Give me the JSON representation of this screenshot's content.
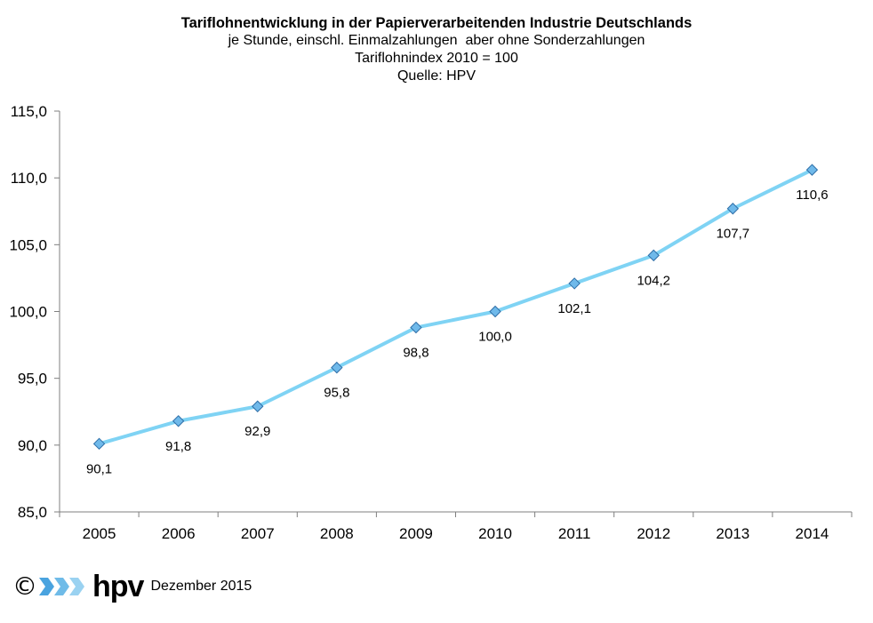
{
  "header": {
    "title": "Tariflohnentwicklung in der Papierverarbeitenden Industrie Deutschlands",
    "subtitle1": "je Stunde, einschl. Einmalzahlungen  aber ohne Sonderzahlungen",
    "subtitle2": "Tariflohnindex 2010 = 100",
    "subtitle3": "Quelle: HPV"
  },
  "chart_data": {
    "type": "line",
    "title": "Tariflohnentwicklung in der Papierverarbeitenden Industrie Deutschlands",
    "categories": [
      "2005",
      "2006",
      "2007",
      "2008",
      "2009",
      "2010",
      "2011",
      "2012",
      "2013",
      "2014"
    ],
    "series": [
      {
        "values": [
          90.1,
          91.8,
          92.9,
          95.8,
          98.8,
          100.0,
          102.1,
          104.2,
          107.7,
          110.6
        ],
        "labels": [
          "90,1",
          "91,8",
          "92,9",
          "95,8",
          "98,8",
          "100,0",
          "102,1",
          "104,2",
          "107,7",
          "110,6"
        ]
      }
    ],
    "yticks": [
      "85,0",
      "90,0",
      "95,0",
      "100,0",
      "105,0",
      "110,0",
      "115,0"
    ],
    "ylim": [
      85,
      115
    ],
    "xlabel": "",
    "ylabel": "",
    "grid": false,
    "legend": "none",
    "colors": {
      "line": "#7fd3f4",
      "marker_fill": "#6fb9ea",
      "marker_stroke": "#2f6fa8"
    }
  },
  "footer": {
    "copyright": "©",
    "logo_text": "hpv",
    "date": "Dezember 2015"
  }
}
